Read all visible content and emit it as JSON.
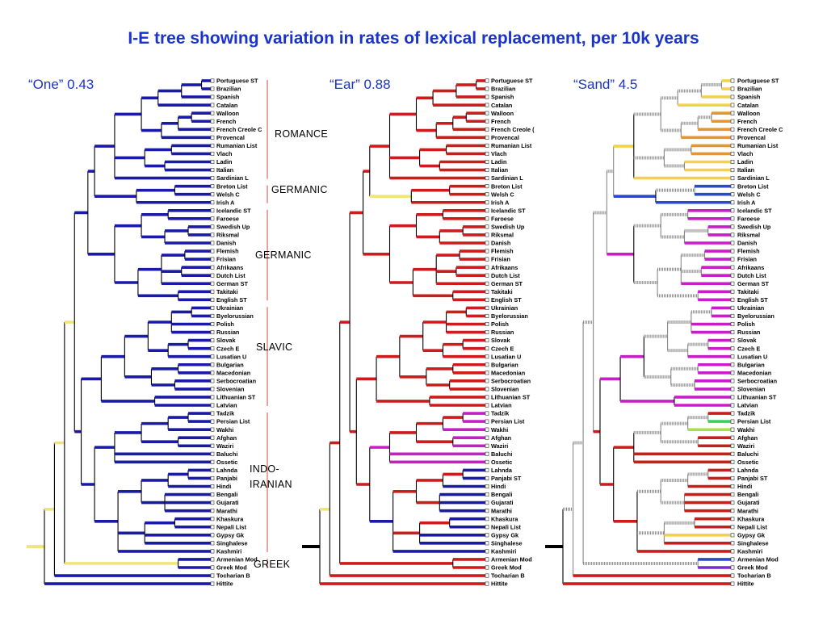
{
  "title": "I-E tree showing variation in rates of lexical replacement, per 10k years",
  "panels": [
    {
      "label": "“One” 0.43"
    },
    {
      "label": "“Ear” 0.88"
    },
    {
      "label": "“Sand” 4.5"
    }
  ],
  "groups": {
    "romance": "ROMANCE",
    "germanic1": "GERMANIC",
    "germanic2": "GERMANIC",
    "slavic": "SLAVIC",
    "indo_iranian_1": "INDO-",
    "indo_iranian_2": "IRANIAN",
    "greek": "GREEK"
  },
  "leaves": [
    [
      "Portuguese ST",
      "Portuguese ST",
      "Portuguese ST"
    ],
    [
      "Brazilian",
      "Brazilian",
      "Brazilian"
    ],
    [
      "Spanish",
      "Spanish",
      "Spanish"
    ],
    [
      "Catalan",
      "Catalan",
      "Catalan"
    ],
    [
      "Walloon",
      "Walloon",
      "Walloon"
    ],
    [
      "French",
      "French",
      "French"
    ],
    [
      "French Creole C",
      "French Creole (",
      "French Creole C"
    ],
    [
      "Provencal",
      "Provencal",
      "Provencal"
    ],
    [
      "Rumanian List",
      "Rumanian List",
      "Rumanian List"
    ],
    [
      "Vlach",
      "Vlach",
      "Vlach"
    ],
    [
      "Ladin",
      "Ladin",
      "Ladin"
    ],
    [
      "Italian",
      "Italian",
      "Italian"
    ],
    [
      "Sardinian L",
      "Sardinian L",
      "Sardinian L"
    ],
    [
      "Breton List",
      "Breton List",
      "Breton List"
    ],
    [
      "Welsh C",
      "Welsh C",
      "Welsh C"
    ],
    [
      "Irish A",
      "Irish A",
      "Irish A"
    ],
    [
      "Icelandic ST",
      "Icelandic ST",
      "Icelandic ST"
    ],
    [
      "Faroese",
      "Faroese",
      "Faroese"
    ],
    [
      "Swedish Up",
      "Swedish Up",
      "Swedish Up"
    ],
    [
      "Riksmal",
      "Riksmal",
      "Riksmal"
    ],
    [
      "Danish",
      "Danish",
      "Danish"
    ],
    [
      "Flemish",
      "Flemish",
      "Flemish"
    ],
    [
      "Frisian",
      "Frisian",
      "Frisian"
    ],
    [
      "Afrikaans",
      "Afrikaans",
      "Afrikaans"
    ],
    [
      "Dutch List",
      "Dutch List",
      "Dutch List"
    ],
    [
      "German ST",
      "German ST",
      "German ST"
    ],
    [
      "Takitaki",
      "Takitaki",
      "Takitaki"
    ],
    [
      "English ST",
      "English ST",
      "English ST"
    ],
    [
      "Ukrainian",
      "Ukrainian",
      "Ukrainian"
    ],
    [
      "Byelorussian",
      "Byelorussian",
      "Byelorussian"
    ],
    [
      "Polish",
      "Polish",
      "Polish"
    ],
    [
      "Russian",
      "Russian",
      "Russian"
    ],
    [
      "Slovak",
      "Slovak",
      "Slovak"
    ],
    [
      "Czech E",
      "Czech E",
      "Czech E"
    ],
    [
      "Lusatian U",
      "Lusatian U",
      "Lusatian U"
    ],
    [
      "Bulgarian",
      "Bulgarian",
      "Bulgarian"
    ],
    [
      "Macedonian",
      "Macedonian",
      "Macedonian"
    ],
    [
      "Serbocroatian",
      "Serbocroatian",
      "Serbocroatian"
    ],
    [
      "Slovenian",
      "Slovenian",
      "Slovenian"
    ],
    [
      "Lithuanian ST",
      "Lithuanian ST",
      "Lithuanian ST"
    ],
    [
      "Latvian",
      "Latvian",
      "Latvian"
    ],
    [
      "Tadzik",
      "Tadzik",
      "Tadzik"
    ],
    [
      "Persian List",
      "Persian List",
      "Persian List"
    ],
    [
      "Wakhi",
      "Wakhi",
      "Wakhi"
    ],
    [
      "Afghan",
      "Afghan",
      "Afghan"
    ],
    [
      "Waziri",
      "Waziri",
      "Waziri"
    ],
    [
      "Baluchi",
      "Baluchi",
      "Baluchi"
    ],
    [
      "Ossetic",
      "Ossetic",
      "Ossetic"
    ],
    [
      "Lahnda",
      "Lahnda",
      "Lahnda"
    ],
    [
      "Panjabi",
      "Panjabi ST",
      "Panjabi ST"
    ],
    [
      "Hindi",
      "Hindi",
      "Hindi"
    ],
    [
      "Bengali",
      "Bengali",
      "Bengali"
    ],
    [
      "Gujarati",
      "Gujarati",
      "Gujarati"
    ],
    [
      "Marathi",
      "Marathi",
      "Marathi"
    ],
    [
      "Khaskura",
      "Khaskura",
      "Khaskura"
    ],
    [
      "Nepali List",
      "Nepali List",
      "Nepali List"
    ],
    [
      "Gypsy Gk",
      "Gypsy Gk",
      "Gypsy Gk"
    ],
    [
      "Singhalese",
      "Singhalese",
      "Singhalese"
    ],
    [
      "Kashmiri",
      "Kashmiri",
      "Kashmiri"
    ],
    [
      "Armenian Mod",
      "Armenian Mod",
      "Armenian Mod"
    ],
    [
      "Greek Mod",
      "Greek Mod",
      "Greek Mod"
    ],
    [
      "Tocharian B",
      "Tocharian B",
      "Tocharian B"
    ],
    [
      "Hittite",
      "Hittite",
      "Hittite"
    ]
  ],
  "colors": {
    "title": "#1a33c8",
    "one": "#1a1aa8",
    "ear_red": "#cc1c1c",
    "ear_blue": "#1a1aa8",
    "ear_magenta": "#c81ec8",
    "slow_yellow": "#f0e678",
    "sand_orange": "#e8962a",
    "sand_yellow": "#f2d24a",
    "sand_magenta": "#c81ec8",
    "sand_red": "#cc1c1c",
    "sand_green": "#38d060",
    "sand_lightgreen": "#a8e04a",
    "sand_blue": "#2a4ac8",
    "sand_purple": "#7a2ad0",
    "root_black": "#000000",
    "bracket": "#d04848",
    "hatch": "#888888"
  }
}
